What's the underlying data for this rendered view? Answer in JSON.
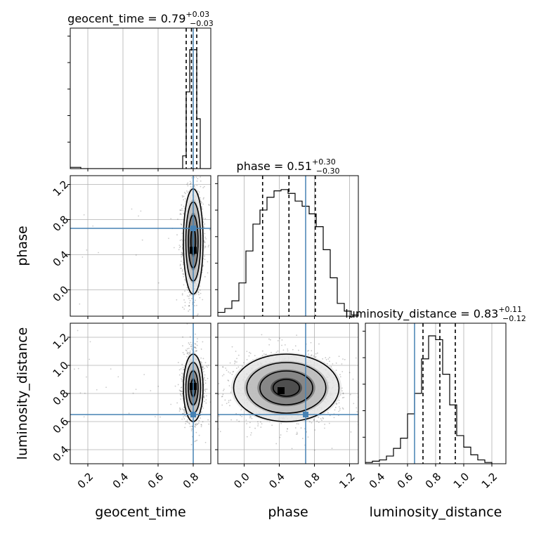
{
  "chart_data": {
    "type": "corner",
    "params": [
      "geocent_time",
      "phase",
      "luminosity_distance"
    ],
    "axis_labels": {
      "geocent_time": "geocent_time",
      "phase": "phase",
      "luminosity_distance": "luminosity_distance"
    },
    "ranges": {
      "geocent_time": [
        0.1,
        0.9
      ],
      "phase": [
        -0.3,
        1.3
      ],
      "luminosity_distance": [
        0.3,
        1.3
      ]
    },
    "ticks": {
      "geocent_time": [
        0.2,
        0.4,
        0.6,
        0.8
      ],
      "phase": [
        0.0,
        0.4,
        0.8,
        1.2
      ],
      "luminosity_distance": [
        0.4,
        0.6,
        0.8,
        1.0,
        1.2
      ]
    },
    "grid": true,
    "truths": {
      "geocent_time": 0.8,
      "phase": 0.7,
      "luminosity_distance": 0.65
    },
    "titles": {
      "geocent_time": {
        "name": "geocent_time",
        "median": "0.79",
        "plus": "+0.03",
        "minus": "−0.03"
      },
      "phase": {
        "name": "phase",
        "median": "0.51",
        "plus": "+0.30",
        "minus": "−0.30"
      },
      "luminosity_distance": {
        "name": "luminosity_distance",
        "median": "0.83",
        "plus": "+0.11",
        "minus": "−0.12"
      }
    },
    "quantiles": {
      "geocent_time": [
        0.76,
        0.79,
        0.82
      ],
      "phase": [
        0.21,
        0.51,
        0.81
      ],
      "luminosity_distance": [
        0.71,
        0.83,
        0.94
      ]
    },
    "histograms": {
      "geocent_time": {
        "edges": [
          0.1,
          0.12,
          0.14,
          0.16,
          0.18,
          0.2,
          0.22,
          0.24,
          0.26,
          0.28,
          0.3,
          0.32,
          0.34,
          0.36,
          0.38,
          0.4,
          0.42,
          0.44,
          0.46,
          0.48,
          0.5,
          0.52,
          0.54,
          0.56,
          0.58,
          0.6,
          0.62,
          0.64,
          0.66,
          0.68,
          0.7,
          0.72,
          0.74,
          0.76,
          0.78,
          0.8,
          0.82,
          0.84,
          0.86,
          0.88,
          0.9
        ],
        "counts": [
          0.01,
          0.01,
          0.01,
          0,
          0,
          0,
          0,
          0,
          0,
          0,
          0,
          0,
          0,
          0,
          0,
          0,
          0,
          0,
          0,
          0,
          0,
          0,
          0,
          0,
          0,
          0,
          0,
          0,
          0,
          0,
          0,
          0,
          0.1,
          0.6,
          0.93,
          0.93,
          0.39,
          0,
          0,
          0
        ]
      },
      "phase": {
        "edges": [
          -0.3,
          -0.22,
          -0.14,
          -0.06,
          0.02,
          0.1,
          0.18,
          0.26,
          0.34,
          0.42,
          0.5,
          0.58,
          0.66,
          0.74,
          0.82,
          0.9,
          0.98,
          1.06,
          1.14,
          1.22,
          1.3
        ],
        "counts": [
          0.03,
          0.06,
          0.12,
          0.26,
          0.51,
          0.72,
          0.83,
          0.93,
          0.98,
          0.99,
          0.96,
          0.9,
          0.86,
          0.8,
          0.7,
          0.52,
          0.3,
          0.1,
          0.04,
          0.01
        ]
      },
      "luminosity_distance": {
        "edges": [
          0.3,
          0.35,
          0.4,
          0.45,
          0.5,
          0.55,
          0.6,
          0.65,
          0.7,
          0.75,
          0.8,
          0.85,
          0.9,
          0.95,
          1.0,
          1.05,
          1.1,
          1.15,
          1.2
        ],
        "counts": [
          0.01,
          0.02,
          0.03,
          0.06,
          0.12,
          0.2,
          0.39,
          0.55,
          0.82,
          1.0,
          0.97,
          0.7,
          0.46,
          0.22,
          0.13,
          0.07,
          0.03,
          0.01
        ]
      }
    },
    "joint": {
      "phase_vs_geocent_time": {
        "x": "geocent_time",
        "y": "phase",
        "center": [
          0.8,
          0.55
        ],
        "sigma": [
          0.028,
          0.3
        ],
        "corr": 0,
        "density_peak": [
          0.8,
          0.45
        ]
      },
      "luminosity_distance_vs_geocent_time": {
        "x": "geocent_time",
        "y": "luminosity_distance",
        "center": [
          0.8,
          0.84
        ],
        "sigma": [
          0.028,
          0.12
        ],
        "corr": 0,
        "density_peak": [
          0.8,
          0.85
        ]
      },
      "luminosity_distance_vs_phase": {
        "x": "phase",
        "y": "luminosity_distance",
        "center": [
          0.48,
          0.84
        ],
        "sigma": [
          0.3,
          0.12
        ],
        "corr": 0,
        "density_peak": [
          0.42,
          0.82
        ]
      }
    },
    "colors": {
      "truth": "#4682b4",
      "hist": "#000000",
      "grid": "#b0b0b0",
      "scatter": "#000000"
    }
  }
}
